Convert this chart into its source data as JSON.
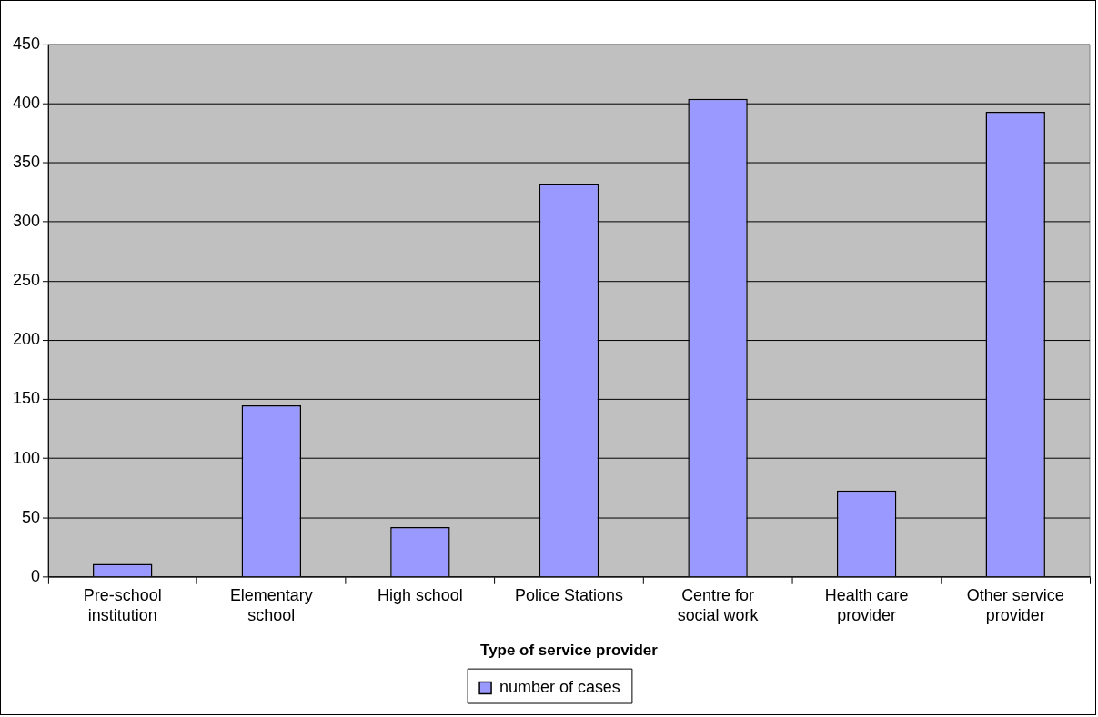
{
  "chart_data": {
    "type": "bar",
    "xlabel": "Type of service provider",
    "categories": [
      "Pre-school institution",
      "Elementary school",
      "High school",
      "Police Stations",
      "Centre for social work",
      "Health care provider",
      "Other service provider"
    ],
    "series": [
      {
        "name": "number of cases",
        "color": "#9999ff",
        "values": [
          11,
          145,
          42,
          332,
          404,
          73,
          393
        ]
      }
    ],
    "ylim": [
      0,
      450
    ],
    "yticks": [
      0,
      50,
      100,
      150,
      200,
      250,
      300,
      350,
      400,
      450
    ],
    "grid": "y",
    "legend": "bottom"
  }
}
